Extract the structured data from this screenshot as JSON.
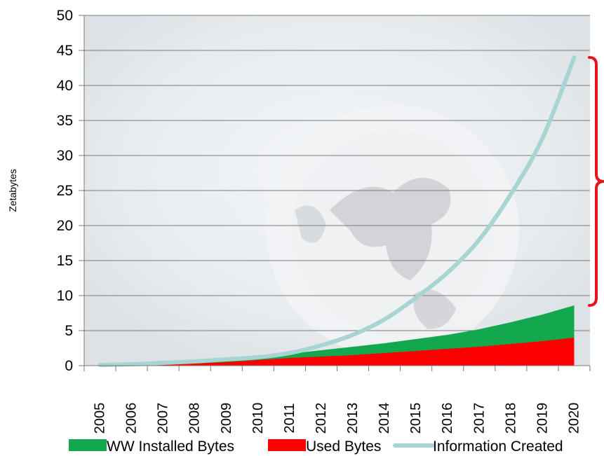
{
  "chart_data": {
    "type": "area",
    "title": "",
    "xlabel": "",
    "ylabel": "Zetabytes",
    "ylim": [
      0,
      50
    ],
    "y_ticks": [
      0,
      5,
      10,
      15,
      20,
      25,
      30,
      35,
      40,
      45,
      50
    ],
    "x": [
      "2005",
      "2006",
      "2007",
      "2008",
      "2009",
      "2010",
      "2011",
      "2012",
      "2013",
      "2014",
      "2015",
      "2016",
      "2017",
      "2018",
      "2019",
      "2020"
    ],
    "grid": "horizontal",
    "legend_position": "bottom",
    "series": [
      {
        "name": "WW Installed Bytes",
        "type": "area",
        "color": "#13A84E",
        "values": [
          0.2,
          0.3,
          0.5,
          0.7,
          1.0,
          1.3,
          1.7,
          2.2,
          2.7,
          3.2,
          3.8,
          4.4,
          5.2,
          6.2,
          7.3,
          8.6
        ]
      },
      {
        "name": "Used Bytes",
        "type": "area",
        "color": "#FF0000",
        "values": [
          0.1,
          0.1,
          0.2,
          0.3,
          0.5,
          0.8,
          1.1,
          1.3,
          1.5,
          1.8,
          2.1,
          2.4,
          2.7,
          3.1,
          3.5,
          4.0
        ]
      },
      {
        "name": "Information Created",
        "type": "line",
        "color": "#A8D5D3",
        "values": [
          0.1,
          0.2,
          0.4,
          0.6,
          0.9,
          1.2,
          1.8,
          2.9,
          4.4,
          6.6,
          9.7,
          13.3,
          18.0,
          24.5,
          32.5,
          44.0
        ]
      }
    ],
    "annotation": {
      "type": "bracket",
      "color": "#E8141B",
      "y_range": [
        8.6,
        44.0
      ]
    }
  }
}
